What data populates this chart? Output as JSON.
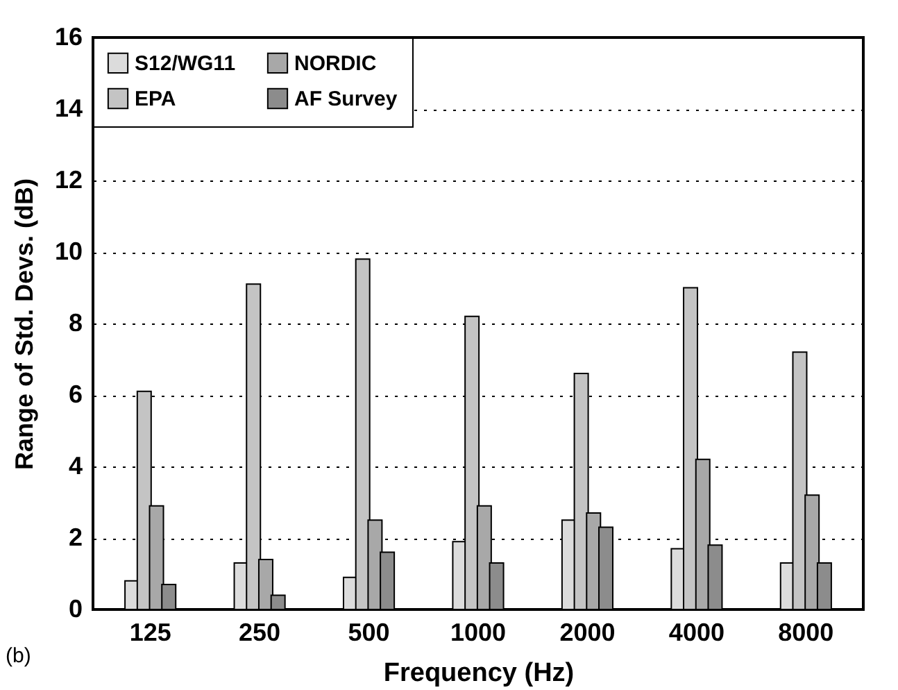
{
  "chart_data": {
    "type": "bar",
    "xlabel": "Frequency (Hz)",
    "ylabel": "Range of Std. Devs. (dB)",
    "categories": [
      "125",
      "250",
      "500",
      "1000",
      "2000",
      "4000",
      "8000"
    ],
    "series": [
      {
        "name": "S12/WG11",
        "color": "#dcdcdc",
        "values": [
          0.8,
          1.3,
          0.9,
          1.9,
          2.5,
          1.7,
          1.3
        ]
      },
      {
        "name": "EPA",
        "color": "#c4c4c4",
        "values": [
          6.1,
          9.1,
          9.8,
          8.2,
          6.6,
          9.0,
          7.2
        ]
      },
      {
        "name": "NORDIC",
        "color": "#a8a8a8",
        "values": [
          2.9,
          1.4,
          2.5,
          2.9,
          2.7,
          4.2,
          3.2
        ]
      },
      {
        "name": "AF Survey",
        "color": "#8c8c8c",
        "values": [
          0.7,
          0.4,
          1.6,
          1.3,
          2.3,
          1.8,
          1.3
        ]
      }
    ],
    "ylim": [
      0,
      16
    ],
    "yticks": [
      0,
      2,
      4,
      6,
      8,
      10,
      12,
      14,
      16
    ],
    "grid": "y",
    "legend": "top left",
    "annotations": [
      "(b)"
    ]
  }
}
